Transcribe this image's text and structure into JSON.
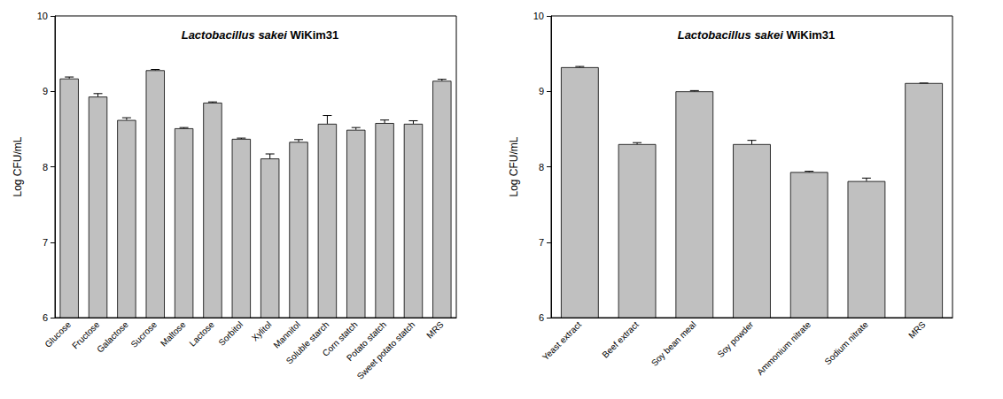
{
  "chart_data": [
    {
      "type": "bar",
      "title": "Lactobacillus sakei WiKim31",
      "ylabel": "Log CFU/mL",
      "categories": [
        "Glucose",
        "Fructose",
        "Galactose",
        "Sucrose",
        "Maltose",
        "Lactose",
        "Sorbitol",
        "Xylitol",
        "Mannitol",
        "Soluble starch",
        "Corn statch",
        "Potato statch",
        "Sweet potato statch",
        "MRS"
      ],
      "values": [
        9.17,
        8.93,
        8.62,
        9.28,
        8.51,
        8.85,
        8.37,
        8.11,
        8.33,
        8.57,
        8.49,
        8.58,
        8.57,
        9.14
      ],
      "errors": [
        0.02,
        0.04,
        0.03,
        0.01,
        0.01,
        0.01,
        0.01,
        0.06,
        0.03,
        0.11,
        0.03,
        0.04,
        0.04,
        0.02
      ],
      "color": "#c0c0c0",
      "ylim": [
        6,
        10
      ],
      "yticks": [
        6,
        7,
        8,
        9,
        10
      ],
      "grid": false
    },
    {
      "type": "bar",
      "title": "Lactobacillus sakei WiKim31",
      "ylabel": "Log CFU/mL",
      "categories": [
        "Yeast extract",
        "Beef extract",
        "Soy bean meal",
        "Soy powder",
        "Ammonium nitrate",
        "Sodium nitrate",
        "MRS"
      ],
      "values": [
        9.32,
        8.3,
        9.0,
        8.3,
        7.93,
        7.81,
        9.11
      ],
      "errors": [
        0.01,
        0.02,
        0.01,
        0.05,
        0.01,
        0.04,
        0.0
      ],
      "color": "#c0c0c0",
      "ylim": [
        6,
        10
      ],
      "yticks": [
        6,
        7,
        8,
        9,
        10
      ],
      "grid": false
    }
  ]
}
